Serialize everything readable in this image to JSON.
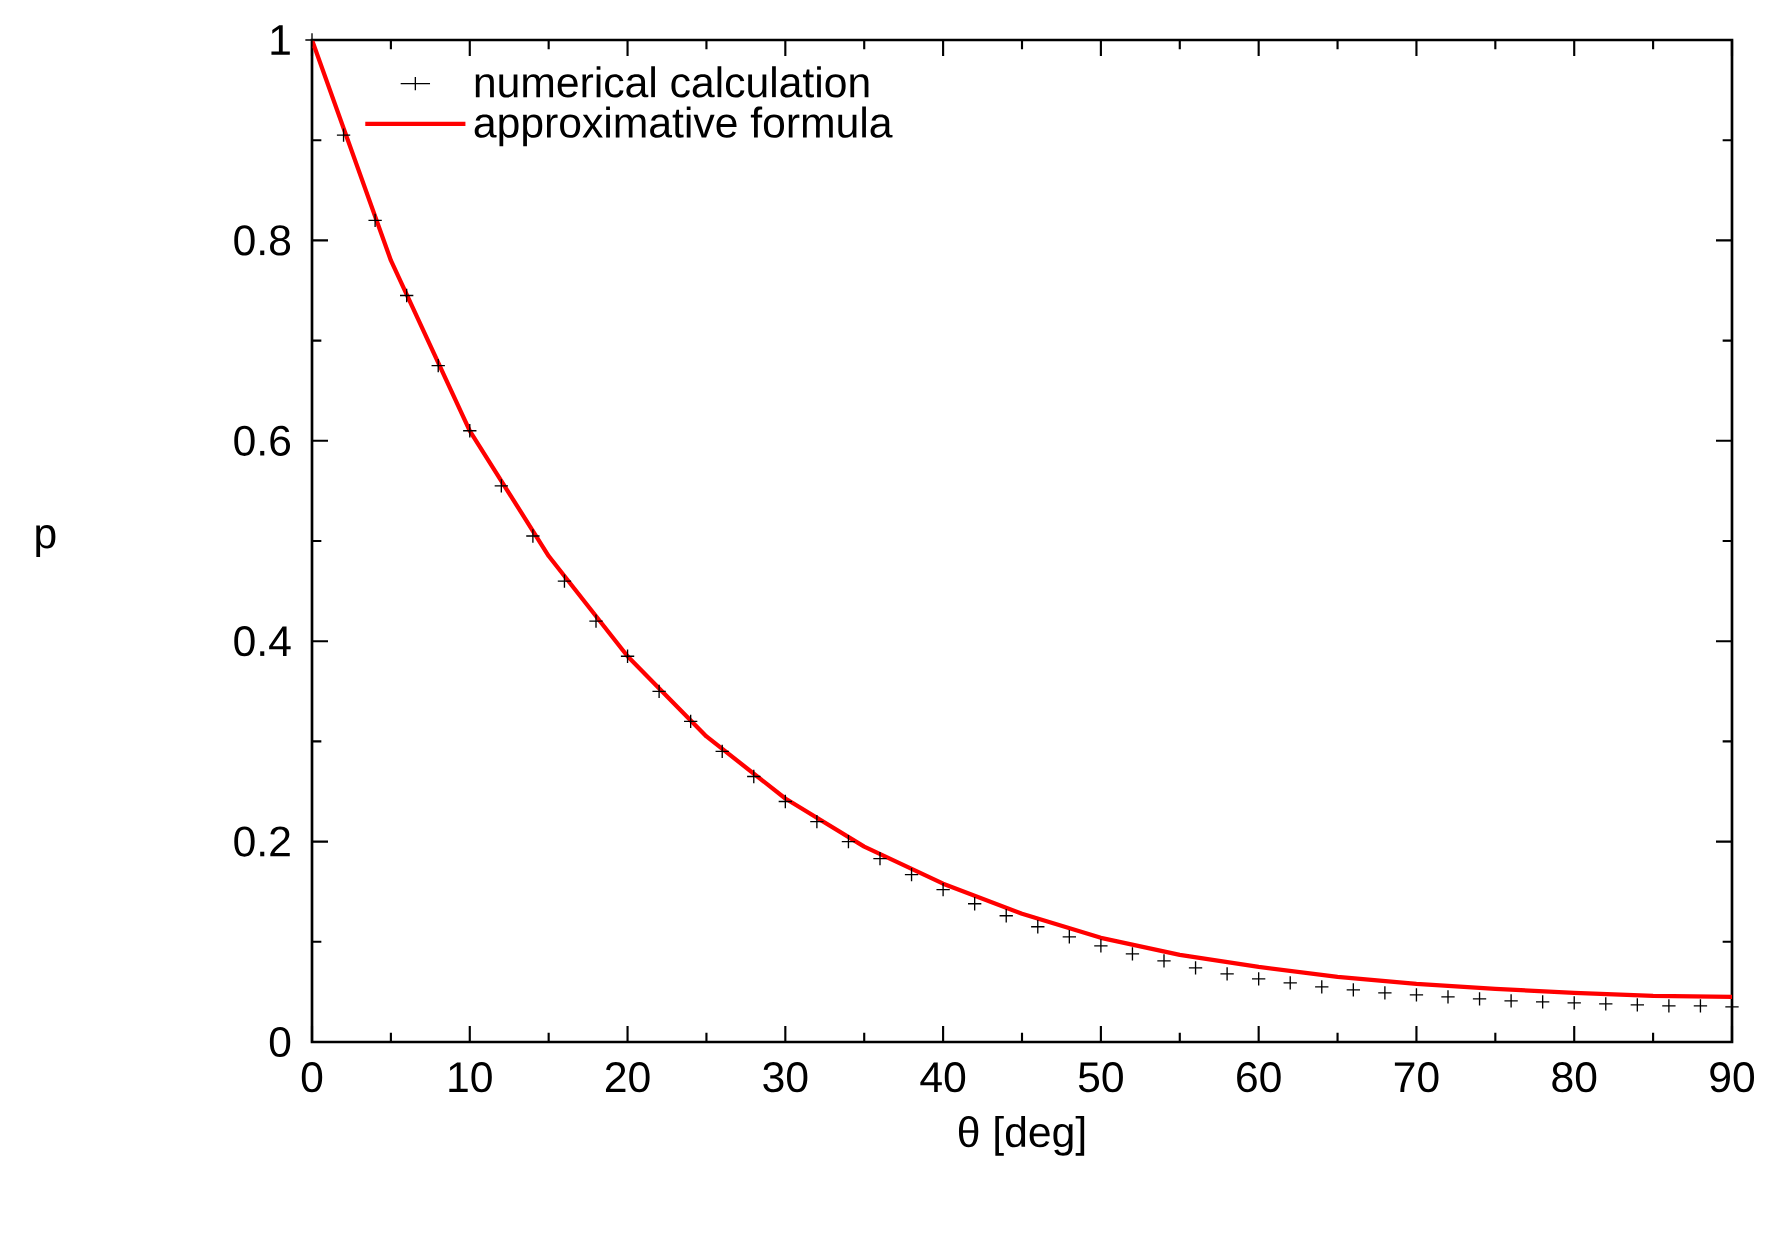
{
  "chart_data": {
    "type": "line",
    "xlabel": "θ [deg]",
    "ylabel": "p",
    "xlim": [
      0,
      90
    ],
    "ylim": [
      0,
      1
    ],
    "xticks": [
      0,
      10,
      20,
      30,
      40,
      50,
      60,
      70,
      80,
      90
    ],
    "yticks": [
      0,
      0.2,
      0.4,
      0.6,
      0.8,
      1
    ],
    "legend": "top left",
    "grid": false,
    "series": [
      {
        "name": "numerical calculation",
        "type": "scatter",
        "marker": "cross",
        "color": "#000000",
        "x": [
          0,
          2,
          4,
          6,
          8,
          10,
          12,
          14,
          16,
          18,
          20,
          22,
          24,
          26,
          28,
          30,
          32,
          34,
          36,
          38,
          40,
          42,
          44,
          46,
          48,
          50,
          52,
          54,
          56,
          58,
          60,
          62,
          64,
          66,
          68,
          70,
          72,
          74,
          76,
          78,
          80,
          82,
          84,
          86,
          88,
          90
        ],
        "values": [
          1.0,
          0.905,
          0.82,
          0.745,
          0.675,
          0.61,
          0.555,
          0.505,
          0.46,
          0.42,
          0.385,
          0.35,
          0.32,
          0.29,
          0.265,
          0.24,
          0.22,
          0.2,
          0.183,
          0.167,
          0.152,
          0.138,
          0.126,
          0.115,
          0.105,
          0.096,
          0.088,
          0.081,
          0.074,
          0.068,
          0.063,
          0.059,
          0.055,
          0.052,
          0.049,
          0.047,
          0.045,
          0.043,
          0.041,
          0.04,
          0.039,
          0.038,
          0.037,
          0.036,
          0.036,
          0.035
        ]
      },
      {
        "name": "approximative formula",
        "marker": "none",
        "line_style": "solid",
        "color": "#ff0000",
        "x": [
          0,
          5,
          10,
          15,
          20,
          25,
          30,
          35,
          40,
          45,
          50,
          55,
          60,
          65,
          70,
          75,
          80,
          85,
          90
        ],
        "values": [
          1.0,
          0.78,
          0.61,
          0.485,
          0.385,
          0.305,
          0.243,
          0.195,
          0.158,
          0.128,
          0.104,
          0.087,
          0.075,
          0.065,
          0.058,
          0.053,
          0.049,
          0.046,
          0.045
        ]
      }
    ]
  }
}
